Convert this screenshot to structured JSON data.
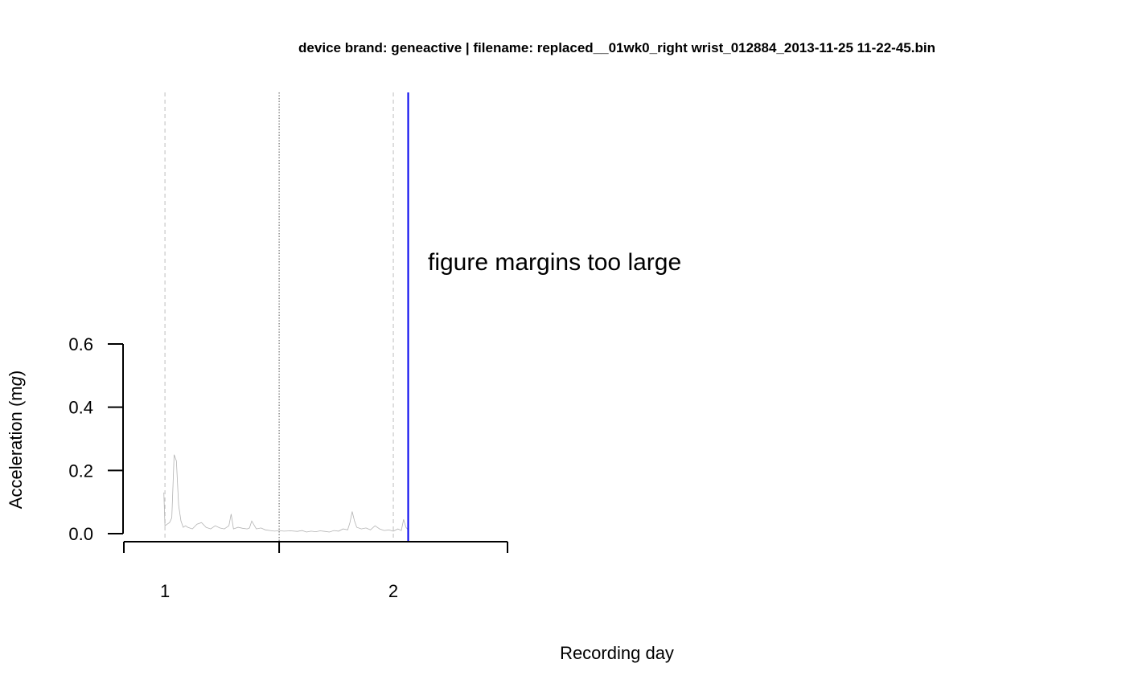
{
  "chart_data": {
    "type": "line",
    "title": "device brand: geneactive | filename: replaced__01wk0_right wrist_012884_2013-11-25 11-22-45.bin",
    "xlabel": "Recording day",
    "ylabel_prefix": "Acceleration (m",
    "ylabel_unit": "g",
    "ylabel_suffix": ")",
    "ylim": [
      0,
      0.6
    ],
    "y_ticks": [
      "0.0",
      "0.2",
      "0.4",
      "0.6"
    ],
    "y_tick_values": [
      0,
      0.2,
      0.4,
      0.6
    ],
    "xlim": [
      0.82,
      2.5
    ],
    "x_axis_ticks": [
      0.82,
      1.5,
      2.5
    ],
    "day_labels": [
      "1",
      "2"
    ],
    "day_label_positions": [
      1,
      2
    ],
    "midnight_line_x": 1.5,
    "day_boundary_lines_x": [
      1,
      2
    ],
    "marker_line_x": 2.065,
    "notice": "figure margins too large",
    "series": [
      {
        "color": "#b3b3b3",
        "x": [
          0.995,
          1.0,
          1.01,
          1.02,
          1.03,
          1.04,
          1.05,
          1.06,
          1.07,
          1.08,
          1.09,
          1.1,
          1.12,
          1.14,
          1.16,
          1.18,
          1.2,
          1.22,
          1.24,
          1.26,
          1.28,
          1.29,
          1.3,
          1.32,
          1.34,
          1.36,
          1.37,
          1.38,
          1.4,
          1.42,
          1.44,
          1.46,
          1.48,
          1.5,
          1.52,
          1.55,
          1.58,
          1.6,
          1.62,
          1.64,
          1.66,
          1.68,
          1.7,
          1.72,
          1.74,
          1.76,
          1.78,
          1.8,
          1.81,
          1.82,
          1.83,
          1.84,
          1.86,
          1.88,
          1.9,
          1.92,
          1.94,
          1.96,
          1.98,
          2.0,
          2.02,
          2.035,
          2.045,
          2.055,
          2.065
        ],
        "values": [
          0.13,
          0.025,
          0.03,
          0.035,
          0.05,
          0.25,
          0.23,
          0.09,
          0.04,
          0.02,
          0.025,
          0.02,
          0.015,
          0.03,
          0.035,
          0.02,
          0.015,
          0.025,
          0.018,
          0.015,
          0.025,
          0.062,
          0.015,
          0.02,
          0.017,
          0.015,
          0.018,
          0.04,
          0.015,
          0.018,
          0.012,
          0.01,
          0.008,
          0.01,
          0.008,
          0.009,
          0.007,
          0.01,
          0.005,
          0.008,
          0.006,
          0.009,
          0.007,
          0.005,
          0.01,
          0.008,
          0.015,
          0.012,
          0.035,
          0.07,
          0.04,
          0.02,
          0.015,
          0.018,
          0.012,
          0.025,
          0.015,
          0.01,
          0.012,
          0.008,
          0.015,
          0.01,
          0.045,
          0.02,
          0.012
        ]
      }
    ]
  }
}
